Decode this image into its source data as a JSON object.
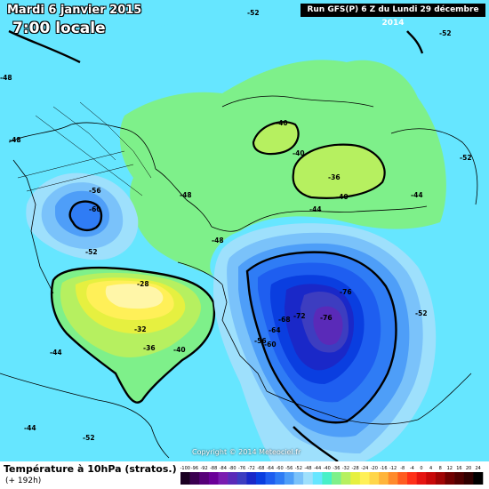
{
  "header": {
    "date": "Mardi 6 janvier 2015",
    "local_time": "7:00 locale",
    "run": "Run GFS(P) 6 Z du Lundi 29 décembre 2014"
  },
  "copyright": "Copyright © 2014 Meteociel.fr",
  "footer": {
    "title": "Température à 10hPa (stratos.)",
    "subtitle": "(+ 192h)"
  },
  "legend": {
    "ticks": [
      "-100",
      "-96",
      "-92",
      "-88",
      "-84",
      "-80",
      "-76",
      "-72",
      "-68",
      "-64",
      "-60",
      "-56",
      "-52",
      "-48",
      "-44",
      "-40",
      "-36",
      "-32",
      "-28",
      "-24",
      "-20",
      "-16",
      "-12",
      "-8",
      "-4",
      "0",
      "4",
      "8",
      "12",
      "16",
      "20",
      "24"
    ],
    "colors": [
      "#1a0022",
      "#3a0050",
      "#560078",
      "#6a0098",
      "#7a1cb0",
      "#5a2ab8",
      "#3d3dc0",
      "#1a28c8",
      "#0a3ee0",
      "#1e5ef0",
      "#2f7cf5",
      "#4e9ef8",
      "#7ac2fa",
      "#9ee0fc",
      "#66e6ff",
      "#48f0c8",
      "#7ef08a",
      "#b6f060",
      "#e6f040",
      "#fff058",
      "#ffd64a",
      "#ffb43a",
      "#ff8a2c",
      "#ff5c20",
      "#ff3018",
      "#e61410",
      "#c80808",
      "#a00404",
      "#700000",
      "#500000",
      "#300000",
      "#000000"
    ]
  },
  "labels": {
    "m40a": "-40",
    "m40b": "-40",
    "m40c": "-40",
    "m40d": "-40",
    "m36a": "-36",
    "m36b": "-36",
    "m32": "-32",
    "m44a": "-44",
    "m44b": "-44",
    "m44c": "-44",
    "m44d": "-44",
    "m48a": "-48",
    "m48b": "-48",
    "m48c": "-48",
    "m48d": "-48",
    "m52a": "-52",
    "m52b": "-52",
    "m52c": "-52",
    "m52d": "-52",
    "m52e": "-52",
    "m52f": "-52",
    "m56a": "-56",
    "m56b": "-56",
    "m60a": "-60",
    "m60b": "-60",
    "m64": "-64",
    "m68": "-68",
    "m72": "-72",
    "m76a": "-76",
    "m76b": "-76",
    "m28": "-28"
  }
}
